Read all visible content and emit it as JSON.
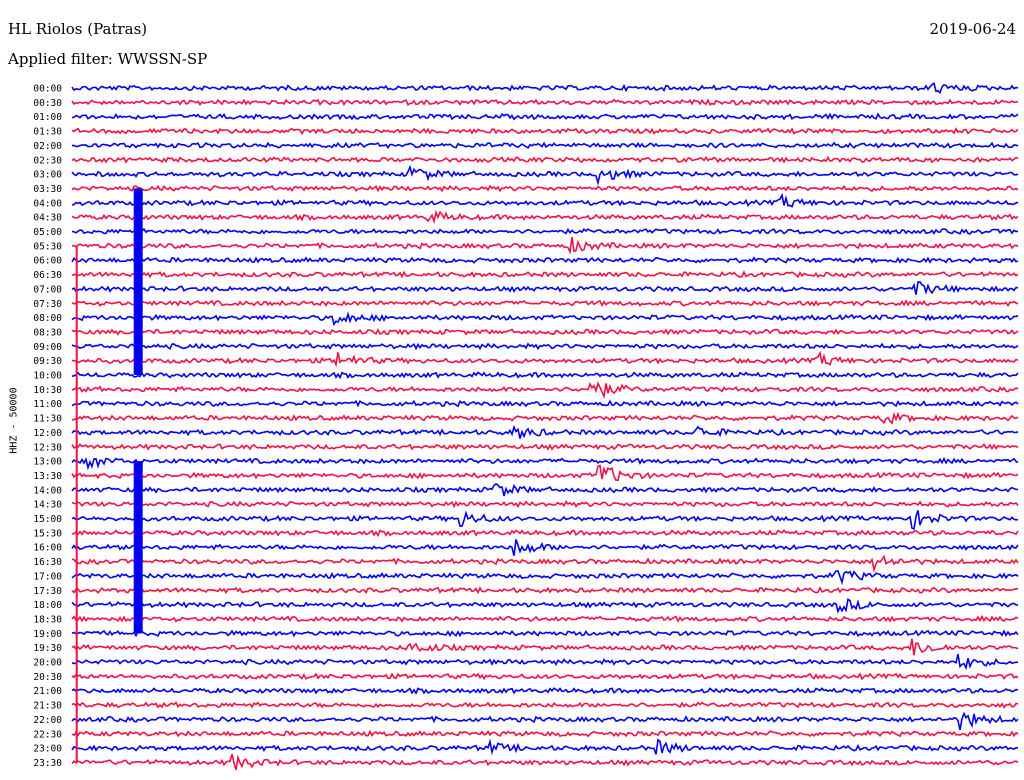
{
  "header": {
    "station": "HL Riolos (Patras)",
    "date": "2019-06-24",
    "filter": "Applied filter: WWSSN-SP"
  },
  "chart_data": {
    "type": "line",
    "title": "HL Riolos (Patras)",
    "ylabel": "HHZ - 50000",
    "colors": [
      "#0000ee",
      "#ee1144"
    ],
    "rows": [
      "00:00",
      "00:30",
      "01:00",
      "01:30",
      "02:00",
      "02:30",
      "03:00",
      "03:30",
      "04:00",
      "04:30",
      "05:00",
      "05:30",
      "06:00",
      "06:30",
      "07:00",
      "07:30",
      "08:00",
      "08:30",
      "09:00",
      "09:30",
      "10:00",
      "10:30",
      "11:00",
      "11:30",
      "12:00",
      "12:30",
      "13:00",
      "13:30",
      "14:00",
      "14:30",
      "15:00",
      "15:30",
      "16:00",
      "16:30",
      "17:00",
      "17:30",
      "18:00",
      "18:30",
      "19:00",
      "19:30",
      "20:00",
      "20:30",
      "21:00",
      "21:30",
      "22:00",
      "22:30",
      "23:00",
      "23:30"
    ],
    "events": [
      {
        "row": 0,
        "t": 0.91,
        "amp": 1.2
      },
      {
        "row": 6,
        "t": 0.36,
        "amp": 1.6
      },
      {
        "row": 6,
        "t": 0.56,
        "amp": 1.6
      },
      {
        "row": 8,
        "t": 0.75,
        "amp": 1.2
      },
      {
        "row": 9,
        "t": 0.38,
        "amp": 1.0
      },
      {
        "row": 11,
        "t": 0.53,
        "amp": 1.4
      },
      {
        "row": 14,
        "t": 0.89,
        "amp": 1.6
      },
      {
        "row": 16,
        "t": 0.28,
        "amp": 1.4
      },
      {
        "row": 19,
        "t": 0.28,
        "amp": 1.8
      },
      {
        "row": 19,
        "t": 0.79,
        "amp": 1.2
      },
      {
        "row": 21,
        "t": 0.55,
        "amp": 2.4
      },
      {
        "row": 23,
        "t": 0.86,
        "amp": 1.0
      },
      {
        "row": 24,
        "t": 0.47,
        "amp": 1.3
      },
      {
        "row": 24,
        "t": 0.66,
        "amp": 1.2
      },
      {
        "row": 26,
        "t": 0.02,
        "amp": 1.2
      },
      {
        "row": 27,
        "t": 0.56,
        "amp": 2.4
      },
      {
        "row": 28,
        "t": 0.45,
        "amp": 1.4
      },
      {
        "row": 30,
        "t": 0.41,
        "amp": 1.8
      },
      {
        "row": 30,
        "t": 0.89,
        "amp": 2.0
      },
      {
        "row": 32,
        "t": 0.47,
        "amp": 1.8
      },
      {
        "row": 33,
        "t": 0.85,
        "amp": 1.6
      },
      {
        "row": 34,
        "t": 0.81,
        "amp": 1.4
      },
      {
        "row": 36,
        "t": 0.81,
        "amp": 1.6
      },
      {
        "row": 39,
        "t": 0.36,
        "amp": 1.2
      },
      {
        "row": 39,
        "t": 0.89,
        "amp": 1.8
      },
      {
        "row": 40,
        "t": 0.94,
        "amp": 1.4
      },
      {
        "row": 44,
        "t": 0.94,
        "amp": 2.0
      },
      {
        "row": 46,
        "t": 0.44,
        "amp": 1.2
      },
      {
        "row": 46,
        "t": 0.62,
        "amp": 1.4
      },
      {
        "row": 47,
        "t": 0.17,
        "amp": 1.6
      }
    ],
    "spikes": [
      {
        "t": 0.07,
        "fromRow": 7,
        "toRow": 20
      },
      {
        "t": 0.07,
        "fromRow": 26,
        "toRow": 38
      },
      {
        "t": 0.005,
        "fromRow": 11,
        "toRow": 47
      }
    ]
  }
}
